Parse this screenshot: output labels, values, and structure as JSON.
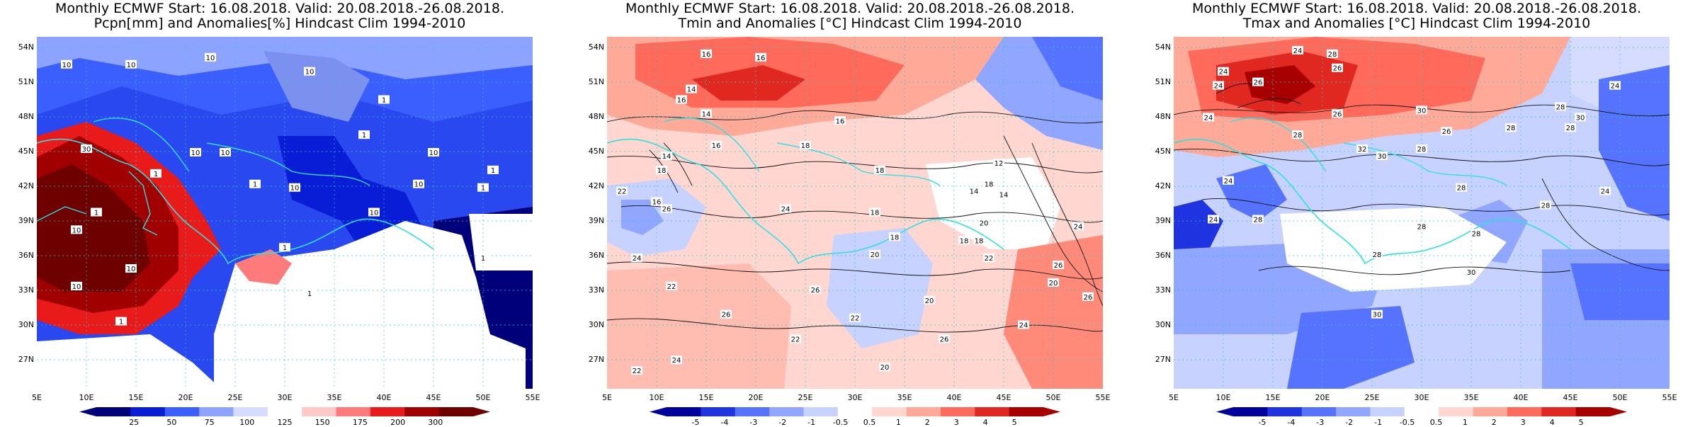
{
  "panels": [
    {
      "title_line1": "Monthly ECMWF Start: 16.08.2018. Valid: 20.08.2018.-26.08.2018.",
      "title_line2": "Pcpn[mm] and Anomalies[%] Hindcast Clim 1994-2010",
      "colorbar_ticks": [
        "25",
        "50",
        "75",
        "100",
        "125",
        "150",
        "175",
        "200",
        "300"
      ],
      "contour_labels": [
        "10",
        "10",
        "10",
        "10",
        "1",
        "1",
        "1",
        "10",
        "30",
        "10",
        "1",
        "10",
        "10",
        "10",
        "1",
        "10",
        "1",
        "1",
        "10",
        "1",
        "1",
        "10",
        "1",
        "1",
        "10"
      ],
      "colors": [
        "#00007a",
        "#0a1dd6",
        "#3b5fff",
        "#8ca3ff",
        "#d6dcff",
        "#ffffff",
        "#ffc8c8",
        "#ff7a7a",
        "#e81a1a",
        "#a00000",
        "#6e0000"
      ]
    },
    {
      "title_line1": "Monthly ECMWF Start: 16.08.2018. Valid: 20.08.2018.-26.08.2018.",
      "title_line2": "Tmin and Anomalies [°C] Hindcast Clim 1994-2010",
      "colorbar_ticks": [
        "-5",
        "-4",
        "-3",
        "-2",
        "-1",
        "-0.5",
        "0.5",
        "1",
        "2",
        "3",
        "4",
        "5"
      ],
      "contour_labels": [
        "16",
        "16",
        "14",
        "16",
        "14",
        "16",
        "18",
        "14",
        "18",
        "16",
        "16",
        "18",
        "18",
        "14",
        "18",
        "20",
        "18",
        "12",
        "14",
        "22",
        "24",
        "22",
        "20",
        "18",
        "26",
        "22",
        "24",
        "22",
        "26",
        "20",
        "18",
        "22",
        "24",
        "24",
        "26",
        "26",
        "20",
        "22",
        "20",
        "26",
        "26",
        "24"
      ],
      "colors": [
        "#00009a",
        "#1f33e0",
        "#5573ff",
        "#91a6ff",
        "#c8d2ff",
        "#ffffff",
        "#ffd7d0",
        "#ffa999",
        "#ff6a5a",
        "#e02820",
        "#a80000"
      ]
    },
    {
      "title_line1": "Monthly ECMWF Start: 16.08.2018. Valid: 20.08.2018.-26.08.2018.",
      "title_line2": "Tmax and Anomalies [°C] Hindcast Clim 1994-2010",
      "colorbar_ticks": [
        "-5",
        "-4",
        "-3",
        "-2",
        "-1",
        "-0.5",
        "0.5",
        "1",
        "2",
        "3",
        "4",
        "5"
      ],
      "contour_labels": [
        "24",
        "24",
        "26",
        "28",
        "26",
        "24",
        "24",
        "28",
        "26",
        "30",
        "28",
        "28",
        "26",
        "28",
        "30",
        "32",
        "28",
        "28",
        "30",
        "28",
        "24",
        "28",
        "24",
        "28",
        "28",
        "24",
        "28",
        "30",
        "30",
        "24"
      ],
      "colors": [
        "#00009a",
        "#1f33e0",
        "#5573ff",
        "#91a6ff",
        "#c8d2ff",
        "#ffffff",
        "#ffd7d0",
        "#ffa999",
        "#ff6a5a",
        "#e02820",
        "#a80000"
      ]
    }
  ],
  "lat_labels": [
    "54N",
    "51N",
    "48N",
    "45N",
    "42N",
    "39N",
    "36N",
    "33N",
    "30N",
    "27N"
  ],
  "lon_labels": [
    "5E",
    "10E",
    "15E",
    "20E",
    "25E",
    "30E",
    "35E",
    "40E",
    "45E",
    "50E",
    "55E"
  ]
}
